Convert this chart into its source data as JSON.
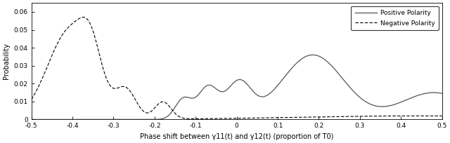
{
  "title": "",
  "xlabel": "Phase shift between γ11(t) and γ12(t) (proportion of T0)",
  "ylabel": "Probability",
  "xlim": [
    -0.5,
    0.5
  ],
  "ylim": [
    0,
    0.065
  ],
  "yticks": [
    0,
    0.01,
    0.02,
    0.03,
    0.04,
    0.05,
    0.06
  ],
  "ytick_labels": [
    "0",
    "0.01",
    "0.02",
    "0.03",
    "0.04",
    "0.05",
    "0.06"
  ],
  "xticks": [
    -0.5,
    -0.4,
    -0.3,
    -0.2,
    -0.1,
    0,
    0.1,
    0.2,
    0.3,
    0.4,
    0.5
  ],
  "positive_color": "#555555",
  "negative_color": "#000000",
  "legend_pos": "upper right",
  "figsize": [
    6.4,
    2.04
  ],
  "dpi": 100
}
